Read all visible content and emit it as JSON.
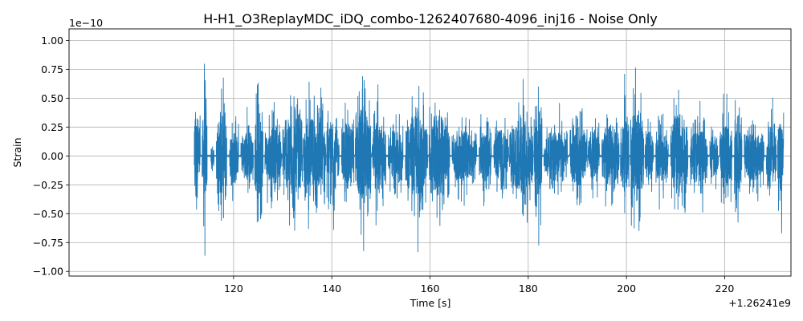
{
  "chart_data": {
    "type": "line",
    "title": "H-H1_O3ReplayMDC_iDQ_combo-1262407680-4096_inj16 - Noise Only",
    "xlabel": "Time [s]",
    "ylabel": "Strain",
    "x_offset_label": "+1.26241e9",
    "y_scale_label": "1e−10",
    "xlim": [
      86.5,
      233.5
    ],
    "ylim": [
      -1.04,
      1.1
    ],
    "x_ticks": [
      120,
      140,
      160,
      180,
      200,
      220
    ],
    "x_tick_labels": [
      "120",
      "140",
      "160",
      "180",
      "200",
      "220"
    ],
    "y_ticks": [
      -1.0,
      -0.75,
      -0.5,
      -0.25,
      0.0,
      0.25,
      0.5,
      0.75,
      1.0
    ],
    "y_tick_labels": [
      "−1.00",
      "−0.75",
      "−0.50",
      "−0.25",
      "0.00",
      "0.25",
      "0.50",
      "0.75",
      "1.00"
    ],
    "grid": true,
    "color": "#1f77b4",
    "series": [
      {
        "x_range": [
          112.0,
          232.0
        ],
        "segments": [
          {
            "x": [
              112.0,
              113.2
            ],
            "amp": 0.82
          },
          {
            "x": [
              113.6,
              114.6
            ],
            "amp": 0.93
          },
          {
            "x": [
              115.4,
              116.0
            ],
            "amp": 0.22
          },
          {
            "x": [
              116.5,
              118.6
            ],
            "amp": 0.78
          },
          {
            "x": [
              119.2,
              121.0
            ],
            "amp": 0.55
          },
          {
            "x": [
              121.5,
              124.0
            ],
            "amp": 0.48
          },
          {
            "x": [
              124.3,
              126.0
            ],
            "amp": 0.92
          },
          {
            "x": [
              126.4,
              129.8
            ],
            "amp": 0.55
          },
          {
            "x": [
              130.0,
              134.0
            ],
            "amp": 0.78
          },
          {
            "x": [
              134.2,
              138.8
            ],
            "amp": 0.75
          },
          {
            "x": [
              139.0,
              141.5
            ],
            "amp": 0.65
          },
          {
            "x": [
              142.0,
              144.5
            ],
            "amp": 0.68
          },
          {
            "x": [
              144.8,
              148.0
            ],
            "amp": 0.93
          },
          {
            "x": [
              148.2,
              151.0
            ],
            "amp": 0.72
          },
          {
            "x": [
              151.5,
              154.5
            ],
            "amp": 0.48
          },
          {
            "x": [
              155.0,
              159.5
            ],
            "amp": 0.85
          },
          {
            "x": [
              159.8,
              164.0
            ],
            "amp": 0.78
          },
          {
            "x": [
              164.5,
              169.5
            ],
            "amp": 0.48
          },
          {
            "x": [
              170.0,
              172.5
            ],
            "amp": 0.5
          },
          {
            "x": [
              173.0,
              176.0
            ],
            "amp": 0.52
          },
          {
            "x": [
              176.2,
              181.0
            ],
            "amp": 0.72
          },
          {
            "x": [
              181.2,
              182.8
            ],
            "amp": 0.83
          },
          {
            "x": [
              183.2,
              188.0
            ],
            "amp": 0.5
          },
          {
            "x": [
              188.5,
              192.0
            ],
            "amp": 0.58
          },
          {
            "x": [
              192.2,
              194.5
            ],
            "amp": 0.48
          },
          {
            "x": [
              195.0,
              198.5
            ],
            "amp": 0.6
          },
          {
            "x": [
              198.8,
              200.5
            ],
            "amp": 0.72
          },
          {
            "x": [
              200.8,
              203.5
            ],
            "amp": 0.95
          },
          {
            "x": [
              203.8,
              205.5
            ],
            "amp": 0.5
          },
          {
            "x": [
              206.0,
              208.5
            ],
            "amp": 0.52
          },
          {
            "x": [
              209.0,
              212.5
            ],
            "amp": 0.85
          },
          {
            "x": [
              213.0,
              216.5
            ],
            "amp": 0.55
          },
          {
            "x": [
              217.0,
              218.7
            ],
            "amp": 0.45
          },
          {
            "x": [
              219.0,
              221.5
            ],
            "amp": 0.6
          },
          {
            "x": [
              222.0,
              223.5
            ],
            "amp": 0.8
          },
          {
            "x": [
              224.0,
              228.0
            ],
            "amp": 0.48
          },
          {
            "x": [
              228.5,
              230.5
            ],
            "amp": 0.55
          },
          {
            "x": [
              230.8,
              232.0
            ],
            "amp": 0.75
          }
        ]
      }
    ]
  }
}
